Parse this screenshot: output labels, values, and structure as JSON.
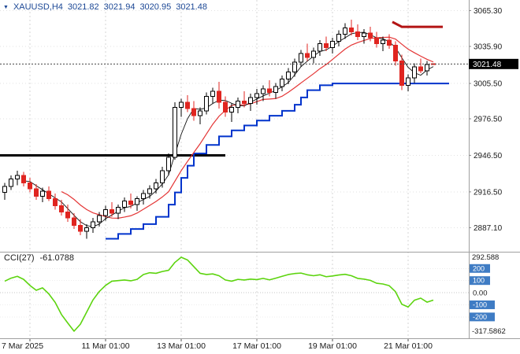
{
  "header": {
    "symbol": "XAUUSD,H4",
    "open": "3021.82",
    "high": "3021.94",
    "low": "3020.95",
    "close": "3021.48"
  },
  "price_axis": {
    "labels": [
      "3065.30",
      "3035.90",
      "3005.50",
      "2976.50",
      "2946.50",
      "2916.50",
      "2887.10"
    ],
    "current_label": "3021.48"
  },
  "time_axis": [
    {
      "label": "7 Mar 2025",
      "i": 4,
      "align": "left"
    },
    {
      "label": "11 Mar 01:00",
      "i": 16,
      "align": "center"
    },
    {
      "label": "13 Mar 01:00",
      "i": 28,
      "align": "center"
    },
    {
      "label": "17 Mar 01:00",
      "i": 40,
      "align": "center"
    },
    {
      "label": "19 Mar 01:00",
      "i": 52,
      "align": "center"
    },
    {
      "label": "21 Mar 01:00",
      "i": 64,
      "align": "center"
    }
  ],
  "colors": {
    "up_fill": "#ffffff",
    "up_stroke": "#000000",
    "down_fill": "#e02520",
    "down_stroke": "#e02520",
    "ma_fast": "#101010",
    "ma_slow": "#e43535",
    "step_line": "#0033cc",
    "black_hline": "#000000",
    "red_segment": "#b31414",
    "grid": "#e2e2e2",
    "vgrid": "#d6d6d6",
    "axis_line": "#a0a0a0",
    "axis_text": "#1a1a1a",
    "badge_bg": "#000000",
    "badge_text": "#ffffff",
    "cci_line": "#5cd40e",
    "cci_badge_bg": "#3f7cc4",
    "cci_badge_text": "#ffffff",
    "current_line": "#444444"
  },
  "chart_data": {
    "type": "candlestick",
    "title": "XAUUSD H4 with CCI(27)",
    "symbol": "XAUUSD",
    "timeframe": "H4",
    "y_range": [
      2868,
      3074
    ],
    "candles": [
      [
        2916,
        2924,
        2910,
        2921
      ],
      [
        2921,
        2930,
        2918,
        2927
      ],
      [
        2927,
        2934,
        2922,
        2930
      ],
      [
        2930,
        2933,
        2921,
        2924
      ],
      [
        2924,
        2928,
        2916,
        2919
      ],
      [
        2919,
        2923,
        2910,
        2913
      ],
      [
        2913,
        2920,
        2908,
        2917
      ],
      [
        2917,
        2921,
        2909,
        2911
      ],
      [
        2911,
        2915,
        2902,
        2905
      ],
      [
        2905,
        2910,
        2897,
        2900
      ],
      [
        2900,
        2906,
        2892,
        2895
      ],
      [
        2895,
        2899,
        2886,
        2889
      ],
      [
        2889,
        2894,
        2881,
        2884
      ],
      [
        2884,
        2890,
        2878,
        2887
      ],
      [
        2887,
        2895,
        2883,
        2892
      ],
      [
        2892,
        2900,
        2888,
        2897
      ],
      [
        2897,
        2905,
        2893,
        2902
      ],
      [
        2902,
        2908,
        2896,
        2899
      ],
      [
        2899,
        2906,
        2894,
        2904
      ],
      [
        2904,
        2912,
        2900,
        2909
      ],
      [
        2909,
        2915,
        2903,
        2906
      ],
      [
        2906,
        2913,
        2901,
        2911
      ],
      [
        2911,
        2918,
        2906,
        2915
      ],
      [
        2915,
        2922,
        2911,
        2919
      ],
      [
        2919,
        2927,
        2915,
        2924
      ],
      [
        2924,
        2937,
        2920,
        2934
      ],
      [
        2934,
        2948,
        2930,
        2945
      ],
      [
        2945,
        2990,
        2943,
        2986
      ],
      [
        2986,
        2993,
        2978,
        2990
      ],
      [
        2990,
        2996,
        2982,
        2985
      ],
      [
        2985,
        2991,
        2975,
        2979
      ],
      [
        2979,
        2986,
        2972,
        2983
      ],
      [
        2983,
        2998,
        2980,
        2995
      ],
      [
        2995,
        3002,
        2989,
        2999
      ],
      [
        2999,
        3007,
        2985,
        2990
      ],
      [
        2990,
        2995,
        2978,
        2982
      ],
      [
        2982,
        2989,
        2974,
        2986
      ],
      [
        2986,
        2994,
        2981,
        2991
      ],
      [
        2991,
        2999,
        2986,
        2989
      ],
      [
        2989,
        2997,
        2983,
        2994
      ],
      [
        2994,
        3001,
        2988,
        2997
      ],
      [
        2997,
        3004,
        2991,
        3001
      ],
      [
        3001,
        3008,
        2995,
        2998
      ],
      [
        2998,
        3006,
        2993,
        3003
      ],
      [
        3003,
        3012,
        2999,
        3009
      ],
      [
        3009,
        3018,
        3005,
        3015
      ],
      [
        3015,
        3026,
        3011,
        3023
      ],
      [
        3023,
        3033,
        3019,
        3030
      ],
      [
        3030,
        3038,
        3024,
        3027
      ],
      [
        3027,
        3035,
        3022,
        3032
      ],
      [
        3032,
        3041,
        3028,
        3038
      ],
      [
        3038,
        3044,
        3032,
        3035
      ],
      [
        3035,
        3043,
        3030,
        3040
      ],
      [
        3040,
        3049,
        3036,
        3046
      ],
      [
        3046,
        3055,
        3042,
        3051
      ],
      [
        3051,
        3058,
        3045,
        3048
      ],
      [
        3048,
        3054,
        3041,
        3044
      ],
      [
        3044,
        3050,
        3038,
        3047
      ],
      [
        3047,
        3052,
        3040,
        3043
      ],
      [
        3043,
        3048,
        3035,
        3038
      ],
      [
        3038,
        3044,
        3032,
        3041
      ],
      [
        3041,
        3046,
        3034,
        3037
      ],
      [
        3037,
        3040,
        3020,
        3024
      ],
      [
        3024,
        3029,
        3000,
        3004
      ],
      [
        3004,
        3013,
        2999,
        3010
      ],
      [
        3010,
        3022,
        3006,
        3019
      ],
      [
        3019,
        3026,
        3014,
        3016
      ],
      [
        3016,
        3024,
        3012,
        3021
      ],
      [
        3021.82,
        3021.94,
        3020.95,
        3021.48
      ]
    ],
    "overlays": {
      "ma_fast_period": 4,
      "ma_slow_period": 10,
      "step_line": [
        [
          16,
          2878
        ],
        [
          18,
          2882
        ],
        [
          20,
          2886
        ],
        [
          22,
          2890
        ],
        [
          24,
          2896
        ],
        [
          26,
          2906
        ],
        [
          27,
          2916
        ],
        [
          28,
          2928
        ],
        [
          29,
          2938
        ],
        [
          30,
          2948
        ],
        [
          32,
          2955
        ],
        [
          34,
          2962
        ],
        [
          36,
          2967
        ],
        [
          38,
          2971
        ],
        [
          40,
          2975
        ],
        [
          42,
          2979
        ],
        [
          44,
          2983
        ],
        [
          46,
          2988
        ],
        [
          47,
          2994
        ],
        [
          48,
          3000
        ],
        [
          50,
          3004
        ],
        [
          52,
          3005.5
        ],
        [
          70.5,
          3005.5
        ]
      ],
      "black_hline": {
        "price": 2946.5,
        "from_i": -0.8,
        "to_i": 35
      },
      "red_segment": [
        [
          61.5,
          3056
        ],
        [
          63,
          3052
        ],
        [
          69.5,
          3052
        ]
      ],
      "current_price": 3021.48
    }
  },
  "cci_panel": {
    "label": "CCI(27)",
    "value": "-61.0788",
    "max_label": "292.588",
    "min_label": "-317.5862",
    "levels": [
      {
        "label": "200",
        "badge": true
      },
      {
        "label": "100",
        "badge": true
      },
      {
        "label": "0.00",
        "badge": false
      },
      {
        "label": "-100",
        "badge": true
      },
      {
        "label": "-200",
        "badge": true
      }
    ],
    "values": [
      95,
      120,
      135,
      110,
      60,
      20,
      40,
      -10,
      -80,
      -180,
      -250,
      -317.5862,
      -260,
      -160,
      -60,
      10,
      60,
      95,
      100,
      105,
      98,
      110,
      150,
      165,
      160,
      175,
      185,
      250,
      292.588,
      270,
      215,
      160,
      150,
      155,
      140,
      105,
      95,
      110,
      105,
      112,
      108,
      118,
      106,
      120,
      135,
      150,
      158,
      162,
      148,
      140,
      148,
      132,
      138,
      146,
      152,
      140,
      118,
      112,
      102,
      78,
      72,
      58,
      8,
      -95,
      -118,
      -62,
      -45,
      -78,
      -61.0788
    ]
  }
}
